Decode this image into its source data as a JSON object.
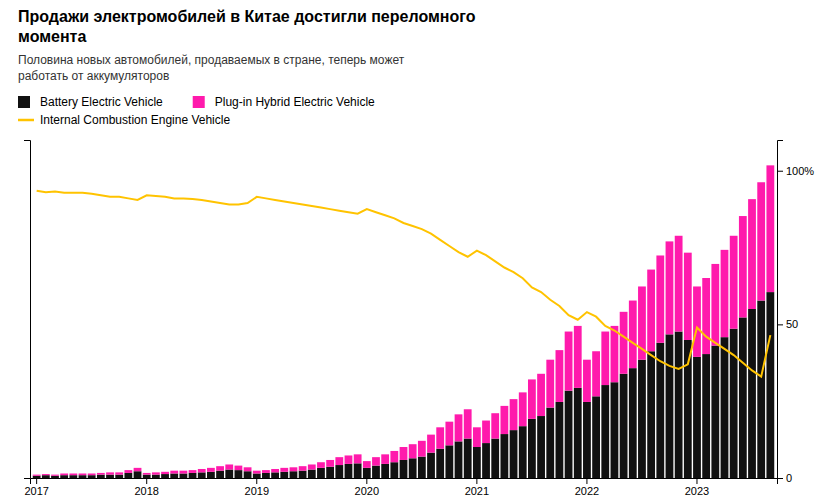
{
  "chart_data": {
    "type": "bar",
    "title": "Продажи электромобилей в Китае достигли переломного\nмомента",
    "subtitle": "Половина новых автомобилей, продаваемых в стране, теперь может\nработать от аккумуляторов",
    "categories": [
      "2017",
      null,
      null,
      null,
      null,
      null,
      null,
      null,
      null,
      null,
      null,
      null,
      "2018",
      null,
      null,
      null,
      null,
      null,
      null,
      null,
      null,
      null,
      null,
      null,
      "2019",
      null,
      null,
      null,
      null,
      null,
      null,
      null,
      null,
      null,
      null,
      null,
      "2020",
      null,
      null,
      null,
      null,
      null,
      null,
      null,
      null,
      null,
      null,
      null,
      "2021",
      null,
      null,
      null,
      null,
      null,
      null,
      null,
      null,
      null,
      null,
      null,
      "2022",
      null,
      null,
      null,
      null,
      null,
      null,
      null,
      null,
      null,
      null,
      null,
      "2023",
      null,
      null,
      null,
      null,
      null,
      null,
      null,
      null
    ],
    "series": [
      {
        "name": "Battery Electric Vehicle",
        "type": "bar",
        "color": "#111111",
        "values": [
          0.4,
          0.5,
          0.4,
          0.5,
          0.5,
          0.5,
          0.5,
          0.6,
          0.6,
          0.6,
          0.9,
          1.2,
          0.6,
          0.6,
          0.7,
          0.8,
          0.8,
          0.9,
          1.0,
          1.1,
          1.3,
          1.5,
          1.4,
          1.2,
          0.8,
          0.9,
          1.0,
          1.1,
          1.2,
          1.3,
          1.5,
          1.8,
          2.0,
          2.3,
          2.5,
          2.6,
          1.8,
          2.2,
          2.5,
          2.8,
          3.2,
          3.5,
          3.8,
          4.5,
          5.2,
          5.8,
          6.5,
          7.0,
          5.5,
          6.2,
          7.0,
          7.8,
          8.5,
          9.2,
          10.5,
          11.0,
          12.5,
          13.5,
          15.5,
          16.0,
          13.5,
          14.5,
          16.5,
          17.0,
          18.5,
          19.5,
          21.0,
          22.5,
          24.0,
          25.5,
          26.0,
          24.5,
          21.5,
          22.0,
          23.5,
          25.0,
          26.5,
          28.5,
          30.0,
          31.5,
          33.0
        ]
      },
      {
        "name": "Plug-in Hybrid Electric Vehicle",
        "type": "bar",
        "color": "#ff1aac",
        "values": [
          0.2,
          0.2,
          0.2,
          0.3,
          0.3,
          0.3,
          0.3,
          0.3,
          0.4,
          0.4,
          0.5,
          0.6,
          0.3,
          0.4,
          0.4,
          0.5,
          0.5,
          0.5,
          0.6,
          0.7,
          0.8,
          0.9,
          0.8,
          0.7,
          0.5,
          0.5,
          0.6,
          0.7,
          0.7,
          0.8,
          0.9,
          1.0,
          1.2,
          1.4,
          1.5,
          1.6,
          1.2,
          1.5,
          1.7,
          2.0,
          2.3,
          2.5,
          2.8,
          3.2,
          3.8,
          4.2,
          4.8,
          5.2,
          3.5,
          4.0,
          4.5,
          5.0,
          5.5,
          6.0,
          7.0,
          7.5,
          8.5,
          9.2,
          10.5,
          11.0,
          7.5,
          8.0,
          9.5,
          10.0,
          11.0,
          12.0,
          13.0,
          14.5,
          15.5,
          16.5,
          17.0,
          15.5,
          12.5,
          13.5,
          14.5,
          15.5,
          16.5,
          18.0,
          19.5,
          21.0,
          22.5
        ]
      },
      {
        "name": "Internal Combustion Engine Vehicle",
        "type": "line",
        "axis": "y2",
        "color": "#ffc300",
        "values": [
          93.5,
          93.0,
          93.2,
          92.8,
          92.8,
          92.8,
          92.5,
          92.0,
          91.5,
          91.5,
          91.0,
          90.5,
          92.0,
          91.8,
          91.5,
          91.0,
          91.0,
          90.8,
          90.5,
          90.0,
          89.5,
          89.0,
          89.0,
          89.5,
          91.5,
          91.0,
          90.5,
          90.0,
          89.5,
          89.0,
          88.5,
          88.0,
          87.5,
          87.0,
          86.5,
          86.0,
          87.5,
          86.5,
          85.5,
          84.5,
          83.0,
          82.0,
          81.0,
          79.5,
          77.5,
          75.5,
          73.5,
          72.0,
          74.0,
          72.5,
          70.5,
          68.5,
          67.0,
          65.0,
          62.0,
          60.5,
          58.0,
          56.0,
          53.0,
          51.5,
          54.0,
          52.5,
          49.5,
          48.0,
          46.0,
          44.0,
          42.0,
          40.0,
          38.0,
          36.5,
          35.5,
          37.0,
          49.0,
          46.0,
          44.0,
          42.0,
          40.0,
          37.5,
          35.0,
          33.0,
          46.5
        ]
      }
    ],
    "stacked": true,
    "ylim": [
      0,
      60
    ],
    "yticks": [],
    "y2lim": [
      0,
      110
    ],
    "y2ticks": [
      0,
      50,
      {
        "value": 100,
        "label": "100%"
      }
    ],
    "grid": false,
    "legend": "top-left"
  }
}
